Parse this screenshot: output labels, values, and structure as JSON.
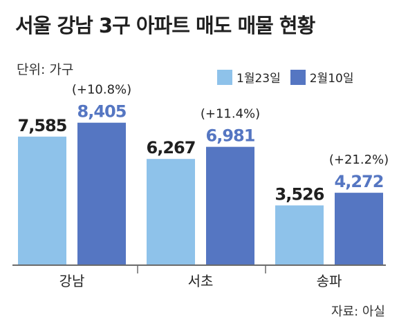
{
  "title": "서울 강남 3구 아파트 매도 매물 현황",
  "unit": "단위: 가구",
  "source": "자료: 아실",
  "colors": {
    "series1": "#8ec2ea",
    "series2": "#5576c2",
    "axis": "#6a6a6a"
  },
  "chart_data": {
    "type": "bar",
    "categories": [
      "강남",
      "서초",
      "송파"
    ],
    "series": [
      {
        "name": "1월23일",
        "values": [
          7585,
          6267,
          3526
        ],
        "labels": [
          "7,585",
          "6,267",
          "3,526"
        ]
      },
      {
        "name": "2월10일",
        "values": [
          8405,
          6981,
          4272
        ],
        "labels": [
          "8,405",
          "6,981",
          "4,272"
        ]
      }
    ],
    "annotations": [
      "(+10.8%)",
      "(+11.4%)",
      "(+21.2%)"
    ],
    "ylim": [
      0,
      11000
    ],
    "grid": false,
    "legend": "top-right"
  }
}
